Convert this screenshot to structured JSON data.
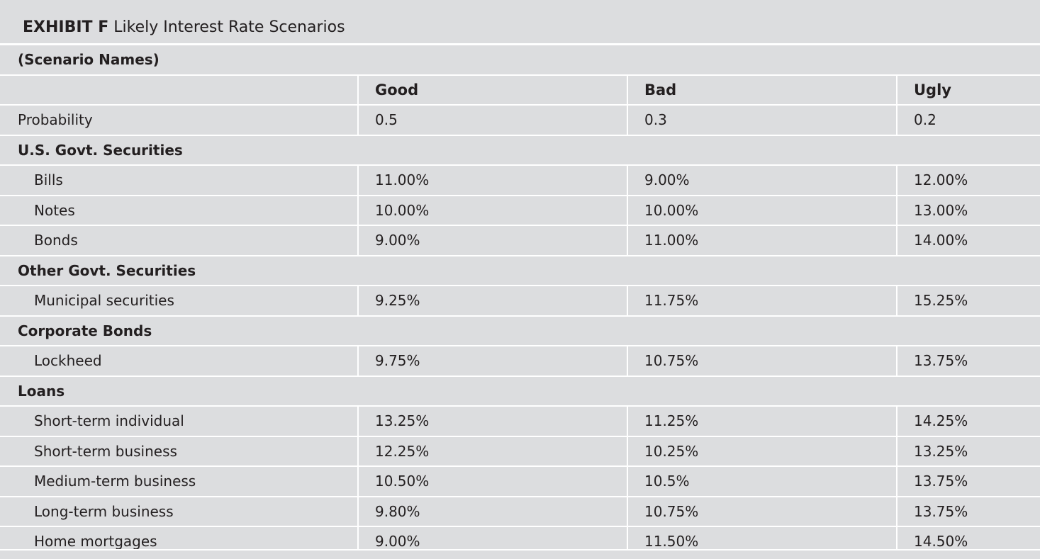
{
  "exhibit": {
    "label": "EXHIBIT F",
    "title": "Likely Interest Rate Scenarios"
  },
  "scenario_names_label": "(Scenario Names)",
  "columns": [
    "Good",
    "Bad",
    "Ugly"
  ],
  "probability": {
    "label": "Probability",
    "values": [
      "0.5",
      "0.3",
      "0.2"
    ]
  },
  "sections": [
    {
      "title": "U.S. Govt. Securities",
      "rows": [
        {
          "name": "Bills",
          "values": [
            "11.00%",
            "9.00%",
            "12.00%"
          ]
        },
        {
          "name": "Notes",
          "values": [
            "10.00%",
            "10.00%",
            "13.00%"
          ]
        },
        {
          "name": "Bonds",
          "values": [
            "9.00%",
            "11.00%",
            "14.00%"
          ]
        }
      ]
    },
    {
      "title": "Other Govt. Securities",
      "rows": [
        {
          "name": "Municipal securities",
          "values": [
            "9.25%",
            "11.75%",
            "15.25%"
          ]
        }
      ]
    },
    {
      "title": "Corporate Bonds",
      "rows": [
        {
          "name": "Lockheed",
          "values": [
            "9.75%",
            "10.75%",
            "13.75%"
          ]
        }
      ]
    },
    {
      "title": "Loans",
      "rows": [
        {
          "name": "Short-term individual",
          "values": [
            "13.25%",
            "11.25%",
            "14.25%"
          ]
        },
        {
          "name": "Short-term business",
          "values": [
            "12.25%",
            "10.25%",
            "13.25%"
          ]
        },
        {
          "name": "Medium-term business",
          "values": [
            "10.50%",
            "10.5%",
            "13.75%"
          ]
        },
        {
          "name": "Long-term business",
          "values": [
            "9.80%",
            "10.75%",
            "13.75%"
          ]
        },
        {
          "name": "Home mortgages",
          "values": [
            "9.00%",
            "11.50%",
            "14.50%"
          ]
        }
      ]
    }
  ]
}
